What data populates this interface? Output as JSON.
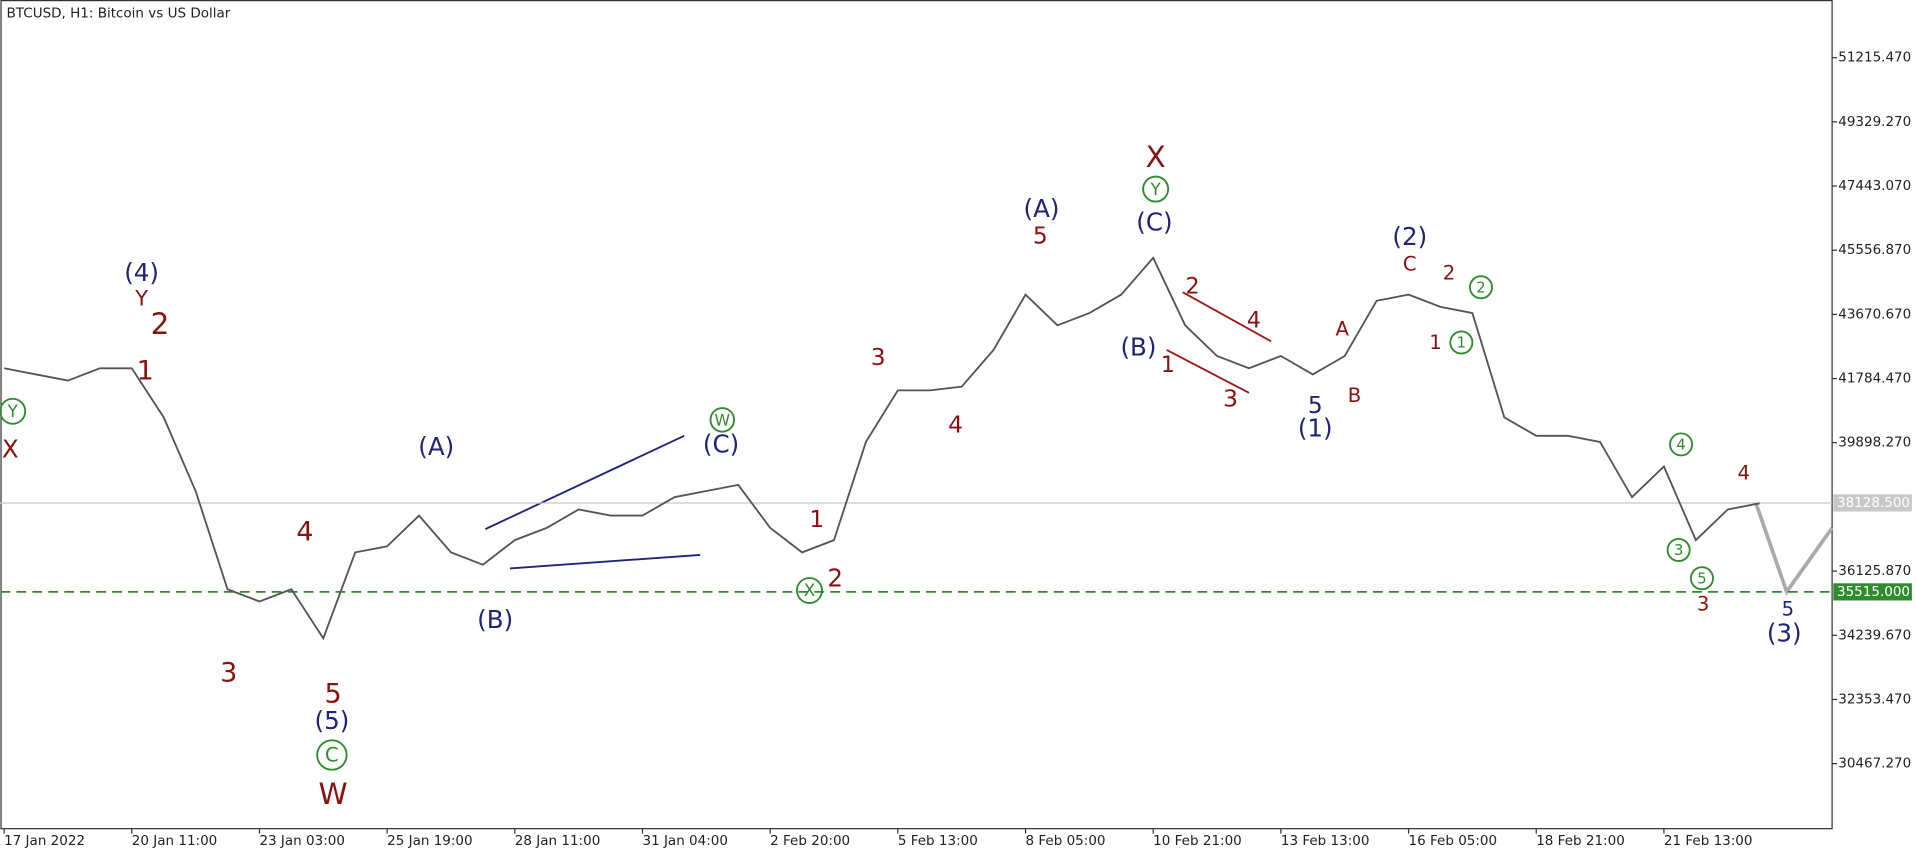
{
  "chart_data": {
    "type": "line",
    "title": "BTCUSD, H1:  Bitcoin vs US Dollar",
    "categories": [
      "17 Jan 2022",
      null,
      null,
      null,
      "20 Jan 11:00",
      null,
      null,
      null,
      "23 Jan 03:00",
      null,
      null,
      null,
      "25 Jan 19:00",
      null,
      null,
      null,
      "28 Jan 11:00",
      null,
      null,
      null,
      "31 Jan 04:00",
      null,
      null,
      null,
      "2 Feb 20:00",
      null,
      null,
      null,
      "5 Feb 13:00",
      null,
      null,
      null,
      "8 Feb 05:00",
      null,
      null,
      null,
      "10 Feb 21:00",
      null,
      null,
      null,
      "13 Feb 13:00",
      null,
      null,
      null,
      "16 Feb 05:00",
      null,
      null,
      null,
      "18 Feb 21:00",
      null,
      null,
      null,
      "21 Feb 13:00",
      null,
      null,
      null
    ],
    "values": [
      42087,
      41906,
      41726,
      42087,
      42087,
      40644,
      38479,
      35592,
      35232,
      35592,
      34149,
      36675,
      36855,
      37757,
      36675,
      36314,
      37036,
      37396,
      37938,
      37757,
      37757,
      38298,
      38479,
      38659,
      37396,
      36675,
      37036,
      39922,
      41437,
      41437,
      41546,
      42628,
      44252,
      43350,
      43710,
      44252,
      45334,
      43350,
      42448,
      42087,
      42448,
      41906,
      42448,
      44071,
      44252,
      43891,
      43710,
      40644,
      40102,
      40102,
      39922,
      38298,
      39200,
      37036,
      37938,
      38118
    ],
    "color": "#555555",
    "ylim": [
      28555,
      52911
    ],
    "yticks": [
      {
        "value": 51215.47,
        "label": "51215.470"
      },
      {
        "value": 49329.27,
        "label": "49329.270"
      },
      {
        "value": 47443.07,
        "label": "47443.070"
      },
      {
        "value": 45556.87,
        "label": "45556.870"
      },
      {
        "value": 43670.67,
        "label": "43670.670"
      },
      {
        "value": 41784.47,
        "label": "41784.470"
      },
      {
        "value": 39898.27,
        "label": "39898.270"
      },
      {
        "value": 36125.87,
        "label": "36125.870"
      },
      {
        "value": 34239.67,
        "label": "34239.670"
      },
      {
        "value": 32353.47,
        "label": "32353.470"
      },
      {
        "value": 30467.27,
        "label": "30467.270"
      }
    ],
    "price_lines": [
      {
        "value": 38128.5,
        "label": "38128.500",
        "color": "#c8c8c8",
        "dashed": false
      },
      {
        "value": 35515,
        "label": "35515.000",
        "color": "#2e8b2e",
        "dashed": true
      }
    ],
    "wave_labels": [
      {
        "text": "(4)",
        "color": "#1f237a"
      },
      {
        "text": "Y",
        "color": "#8b1010"
      },
      {
        "text": "2",
        "color": "#8b1010"
      },
      {
        "text": "1",
        "color": "#8b1010"
      },
      {
        "text": "Y",
        "color": "#2e8b2e",
        "circled": true
      },
      {
        "text": "X",
        "color": "#8b1010"
      },
      {
        "text": "3",
        "color": "#8b1010"
      },
      {
        "text": "4",
        "color": "#8b1010"
      },
      {
        "text": "5",
        "color": "#8b1010"
      },
      {
        "text": "(5)",
        "color": "#1f237a"
      },
      {
        "text": "C",
        "color": "#2e8b2e",
        "circled": true
      },
      {
        "text": "W",
        "color": "#8b1010"
      },
      {
        "text": "(A)",
        "color": "#1f237a"
      },
      {
        "text": "(B)",
        "color": "#1f237a"
      },
      {
        "text": "W",
        "color": "#2e8b2e",
        "circled": true
      },
      {
        "text": "(C)",
        "color": "#1f237a"
      },
      {
        "text": "1",
        "color": "#8b1010"
      },
      {
        "text": "X",
        "color": "#2e8b2e",
        "circled": true
      },
      {
        "text": "2",
        "color": "#8b1010"
      },
      {
        "text": "3",
        "color": "#8b1010"
      },
      {
        "text": "4",
        "color": "#8b1010"
      },
      {
        "text": "(A)",
        "color": "#1f237a"
      },
      {
        "text": "5",
        "color": "#8b1010"
      },
      {
        "text": "X",
        "color": "#8b1010"
      },
      {
        "text": "Y",
        "color": "#2e8b2e",
        "circled": true
      },
      {
        "text": "(C)",
        "color": "#1f237a"
      },
      {
        "text": "(B)",
        "color": "#1f237a"
      },
      {
        "text": "1",
        "color": "#8b1010"
      },
      {
        "text": "2",
        "color": "#8b1010"
      },
      {
        "text": "3",
        "color": "#8b1010"
      },
      {
        "text": "4",
        "color": "#8b1010"
      },
      {
        "text": "5",
        "color": "#1f237a"
      },
      {
        "text": "(1)",
        "color": "#1f237a"
      },
      {
        "text": "A",
        "color": "#8b1010"
      },
      {
        "text": "B",
        "color": "#8b1010"
      },
      {
        "text": "(2)",
        "color": "#1f237a"
      },
      {
        "text": "C",
        "color": "#8b1010"
      },
      {
        "text": "2",
        "color": "#8b1010"
      },
      {
        "text": "2",
        "color": "#2e8b2e",
        "circled": true
      },
      {
        "text": "1",
        "color": "#8b1010"
      },
      {
        "text": "1",
        "color": "#2e8b2e",
        "circled": true
      },
      {
        "text": "4",
        "color": "#2e8b2e",
        "circled": true
      },
      {
        "text": "4",
        "color": "#8b1010"
      },
      {
        "text": "3",
        "color": "#2e8b2e",
        "circled": true
      },
      {
        "text": "5",
        "color": "#2e8b2e",
        "circled": true
      },
      {
        "text": "3",
        "color": "#8b1010"
      },
      {
        "text": "5",
        "color": "#1f237a"
      },
      {
        "text": "(3)",
        "color": "#1f237a"
      }
    ]
  }
}
